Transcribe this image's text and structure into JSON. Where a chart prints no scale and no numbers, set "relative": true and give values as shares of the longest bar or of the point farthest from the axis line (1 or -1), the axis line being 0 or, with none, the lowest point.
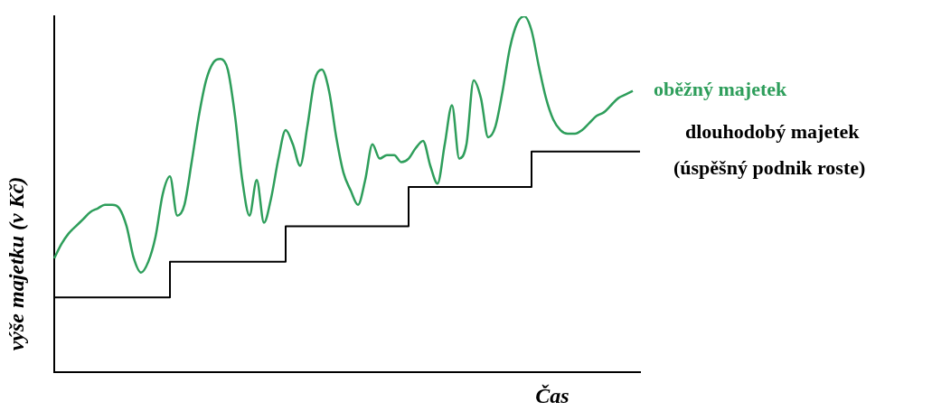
{
  "chart_data": {
    "type": "line",
    "relative": true,
    "xlabel": "Čas",
    "ylabel": "výše majetku (v Kč)",
    "categories": [
      null,
      null,
      null,
      null,
      null,
      null,
      null,
      null,
      null,
      null,
      null,
      null,
      null,
      null,
      null,
      null,
      null,
      null,
      null,
      null,
      null,
      null,
      null,
      null,
      null,
      null,
      null,
      null,
      null,
      null,
      null,
      null,
      null,
      null,
      null,
      null,
      null,
      null,
      null,
      null,
      null,
      null,
      null,
      null,
      null,
      null,
      null,
      null,
      null,
      null,
      null,
      null,
      null,
      null,
      null,
      null,
      null,
      null,
      null,
      null,
      null,
      null,
      null,
      null,
      null,
      null,
      null,
      null,
      null,
      null,
      null,
      null,
      null,
      null,
      null,
      null,
      null,
      null,
      null,
      null,
      null,
      null
    ],
    "series": [
      {
        "name": "oběžný majetek",
        "color": "#2e9e5b",
        "values": [
          0.32,
          0.36,
          0.39,
          0.41,
          0.43,
          0.45,
          0.46,
          0.47,
          0.47,
          0.46,
          0.41,
          0.32,
          0.28,
          0.31,
          0.38,
          0.5,
          0.55,
          0.44,
          0.47,
          0.59,
          0.72,
          0.82,
          0.87,
          0.88,
          0.85,
          0.72,
          0.54,
          0.44,
          0.54,
          0.42,
          0.49,
          0.6,
          0.68,
          0.64,
          0.58,
          0.69,
          0.82,
          0.85,
          0.79,
          0.66,
          0.56,
          0.51,
          0.47,
          0.54,
          0.64,
          0.6,
          0.61,
          0.61,
          0.59,
          0.6,
          0.63,
          0.65,
          0.58,
          0.53,
          0.64,
          0.75,
          0.6,
          0.64,
          0.82,
          0.77,
          0.66,
          0.69,
          0.79,
          0.91,
          0.98,
          1.0,
          0.96,
          0.86,
          0.77,
          0.71,
          0.68,
          0.67,
          0.67,
          0.68,
          0.7,
          0.72,
          0.73,
          0.75,
          0.77,
          0.78,
          0.79,
          null
        ]
      },
      {
        "name": "dlouhodobý majetek",
        "type": "step",
        "color": "#000000",
        "values": [
          0.21,
          0.21,
          0.21,
          0.21,
          0.21,
          0.21,
          0.21,
          0.21,
          0.21,
          0.21,
          0.21,
          0.21,
          0.21,
          0.21,
          0.21,
          0.21,
          0.31,
          0.31,
          0.31,
          0.31,
          0.31,
          0.31,
          0.31,
          0.31,
          0.31,
          0.31,
          0.31,
          0.31,
          0.31,
          0.31,
          0.31,
          0.31,
          0.41,
          0.41,
          0.41,
          0.41,
          0.41,
          0.41,
          0.41,
          0.41,
          0.41,
          0.41,
          0.41,
          0.41,
          0.41,
          0.41,
          0.41,
          0.41,
          0.41,
          0.52,
          0.52,
          0.52,
          0.52,
          0.52,
          0.52,
          0.52,
          0.52,
          0.52,
          0.52,
          0.52,
          0.52,
          0.52,
          0.52,
          0.52,
          0.52,
          0.52,
          0.62,
          0.62,
          0.62,
          0.62,
          0.62,
          0.62,
          0.62,
          0.62,
          0.62,
          0.62,
          0.62,
          0.62,
          0.62,
          0.62,
          0.62,
          0.62
        ]
      }
    ],
    "annotations": [
      "(úspěšný podnik roste)"
    ]
  }
}
